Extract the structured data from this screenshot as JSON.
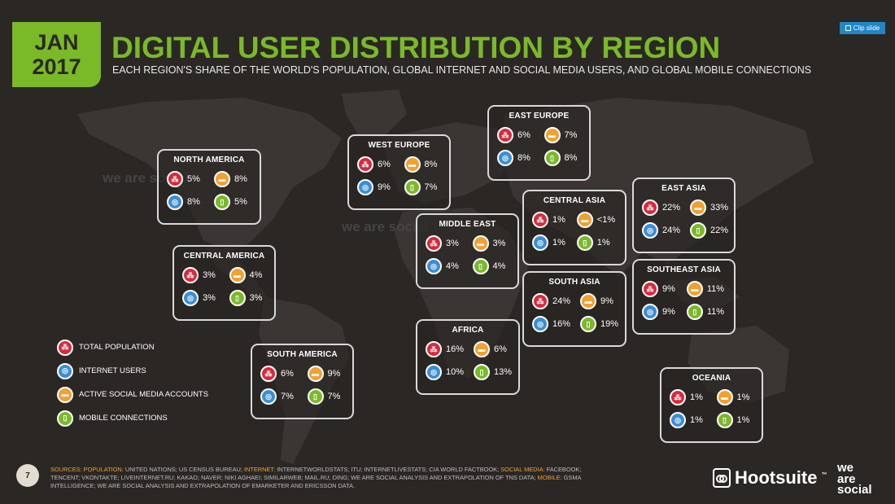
{
  "header": {
    "month": "JAN",
    "year": "2017",
    "title": "DIGITAL USER DISTRIBUTION BY REGION",
    "subtitle": "EACH REGION'S SHARE OF THE WORLD'S POPULATION, GLOBAL INTERNET AND SOCIAL MEDIA USERS, AND GLOBAL MOBILE CONNECTIONS",
    "clip_label": "Clip slide"
  },
  "colors": {
    "background": "#2b2725",
    "accent": "#7ab928",
    "population": "#d9293a",
    "internet": "#3b8ed6",
    "social": "#f2a031",
    "mobile": "#7ab928"
  },
  "icons": {
    "population": "people-icon",
    "internet": "globe-icon",
    "social": "chat-bubble-icon",
    "mobile": "mobile-phone-icon"
  },
  "watermark": "we are social",
  "regions": {
    "north_america": {
      "name": "NORTH AMERICA",
      "population": "5%",
      "social": "8%",
      "internet": "8%",
      "mobile": "5%"
    },
    "central_america": {
      "name": "CENTRAL AMERICA",
      "population": "3%",
      "social": "4%",
      "internet": "3%",
      "mobile": "3%"
    },
    "south_america": {
      "name": "SOUTH AMERICA",
      "population": "6%",
      "social": "9%",
      "internet": "7%",
      "mobile": "7%"
    },
    "west_europe": {
      "name": "WEST EUROPE",
      "population": "6%",
      "social": "8%",
      "internet": "9%",
      "mobile": "7%"
    },
    "east_europe": {
      "name": "EAST EUROPE",
      "population": "6%",
      "social": "7%",
      "internet": "8%",
      "mobile": "8%"
    },
    "middle_east": {
      "name": "MIDDLE EAST",
      "population": "3%",
      "social": "3%",
      "internet": "4%",
      "mobile": "4%"
    },
    "africa": {
      "name": "AFRICA",
      "population": "16%",
      "social": "6%",
      "internet": "10%",
      "mobile": "13%"
    },
    "central_asia": {
      "name": "CENTRAL ASIA",
      "population": "1%",
      "social": "<1%",
      "internet": "1%",
      "mobile": "1%"
    },
    "south_asia": {
      "name": "SOUTH ASIA",
      "population": "24%",
      "social": "9%",
      "internet": "16%",
      "mobile": "19%"
    },
    "east_asia": {
      "name": "EAST ASIA",
      "population": "22%",
      "social": "33%",
      "internet": "24%",
      "mobile": "22%"
    },
    "southeast_asia": {
      "name": "SOUTHEAST ASIA",
      "population": "9%",
      "social": "11%",
      "internet": "9%",
      "mobile": "11%"
    },
    "oceania": {
      "name": "OCEANIA",
      "population": "1%",
      "social": "1%",
      "internet": "1%",
      "mobile": "1%"
    }
  },
  "legend": {
    "population": "TOTAL POPULATION",
    "internet": "INTERNET USERS",
    "social": "ACTIVE SOCIAL MEDIA ACCOUNTS",
    "mobile": "MOBILE CONNECTIONS"
  },
  "footer": {
    "page_number": "7",
    "sources_label": "SOURCES:",
    "population_label": "POPULATION:",
    "population_text": "UNITED NATIONS; US CENSUS BUREAU;",
    "internet_label": "INTERNET:",
    "internet_text": "INTERNETWORLDSTATS; ITU; INTERNETLIVESTATS; CIA WORLD FACTBOOK;",
    "social_label": "SOCIAL MEDIA:",
    "social_text": "FACEBOOK; TENCENT; VKONTAKTE; LIVEINTERNET.RU; KAKAO; NAVER; NIKI AGHAEI; SIMILARWEB; MAIL.RU; DING; WE ARE SOCIAL ANALYSIS AND EXTRAPOLATION OF TNS DATA;",
    "mobile_label": "MOBILE:",
    "mobile_text": "GSMA INTELLIGENCE; WE ARE SOCIAL ANALYSIS AND EXTRAPOLATION OF EMARKETER AND ERICSSON DATA.",
    "hootsuite": "Hootsuite",
    "trademark": "™",
    "we_are_social": [
      "we",
      "are",
      "social"
    ]
  }
}
